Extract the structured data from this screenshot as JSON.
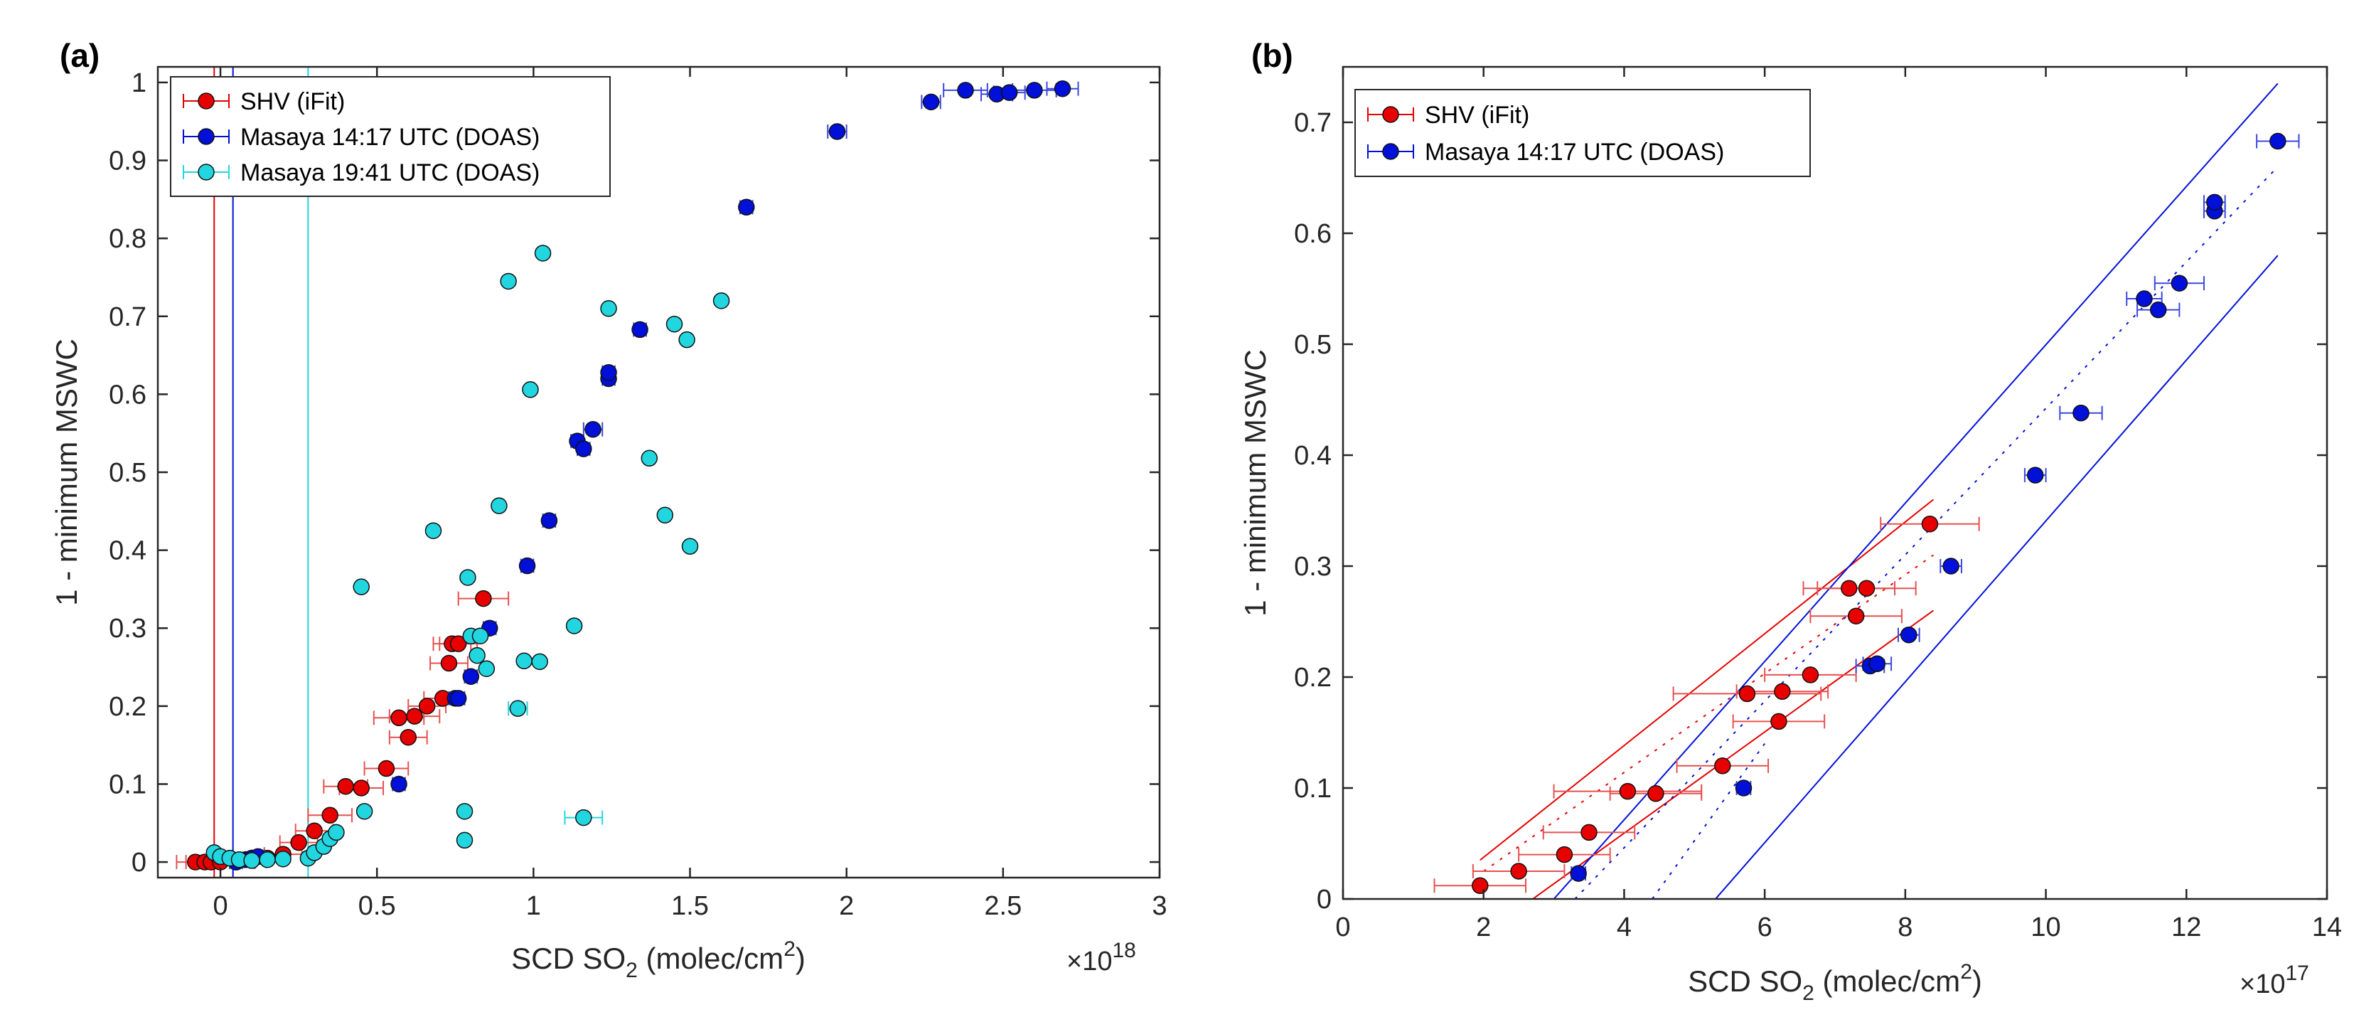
{
  "colors": {
    "shv": "#e60000",
    "shv_err": "#e65050",
    "masaya1417": "#0010d8",
    "masaya1417_err": "#3b47e0",
    "masaya1941": "#22d6e0",
    "masaya1941_err": "#22d6e0",
    "axis": "#262626"
  },
  "chart_data": [
    {
      "type": "scatter",
      "panel_label": "(a)",
      "xlabel": "SCD SO",
      "xlabel_sub": "2",
      "xlabel_suffix": " (molec/cm",
      "xlabel_sup": "2",
      "xlabel_end": ")",
      "ylabel": "1 - minimum MSWC",
      "x_exponent_base": "×10",
      "x_exponent_power": "18",
      "xlim": [
        -0.2,
        3.0
      ],
      "ylim": [
        -0.02,
        1.02
      ],
      "x_ticks": [
        0,
        0.5,
        1,
        1.5,
        2,
        2.5,
        3
      ],
      "x_tick_labels": [
        "0",
        "0.5",
        "1",
        "1.5",
        "2",
        "2.5",
        "3"
      ],
      "y_ticks": [
        0,
        0.1,
        0.2,
        0.3,
        0.4,
        0.5,
        0.6,
        0.7,
        0.8,
        0.9,
        1
      ],
      "y_tick_labels": [
        "0",
        "0.1",
        "0.2",
        "0.3",
        "0.4",
        "0.5",
        "0.6",
        "0.7",
        "0.8",
        "0.9",
        "1"
      ],
      "legend_position": "top-left",
      "vertical_lines": [
        {
          "x": -0.02,
          "series": "SHV (iFit)"
        },
        {
          "x": 0.04,
          "series": "Masaya 14:17 UTC (DOAS)"
        },
        {
          "x": 0.28,
          "series": "Masaya 19:41 UTC (DOAS)"
        }
      ],
      "series": [
        {
          "name": "SHV (iFit)",
          "color_key": "shv",
          "x": [
            -0.08,
            -0.05,
            -0.03,
            0.0,
            0.05,
            0.1,
            0.15,
            0.2,
            0.25,
            0.3,
            0.35,
            0.4,
            0.45,
            0.53,
            0.57,
            0.6,
            0.62,
            0.66,
            0.71,
            0.73,
            0.74,
            0.76,
            0.84
          ],
          "y": [
            0.0,
            0.0,
            0.0,
            0.0,
            0.0,
            0.005,
            0.005,
            0.01,
            0.025,
            0.04,
            0.06,
            0.097,
            0.095,
            0.12,
            0.185,
            0.16,
            0.187,
            0.2,
            0.21,
            0.255,
            0.28,
            0.28,
            0.338
          ],
          "xerr": [
            0.06,
            0.06,
            0.06,
            0.06,
            0.06,
            0.06,
            0.06,
            0.06,
            0.06,
            0.06,
            0.07,
            0.07,
            0.07,
            0.07,
            0.08,
            0.06,
            0.08,
            0.06,
            0.06,
            0.06,
            0.06,
            0.06,
            0.08
          ]
        },
        {
          "name": "Masaya 14:17 UTC (DOAS)",
          "color_key": "masaya1417",
          "x": [
            0.05,
            0.08,
            0.1,
            0.12,
            0.57,
            0.75,
            0.76,
            0.8,
            0.86,
            0.98,
            1.05,
            1.14,
            1.16,
            1.19,
            1.24,
            1.24,
            1.34,
            1.68,
            1.97,
            2.27,
            2.38,
            2.48,
            2.52,
            2.6,
            2.69
          ],
          "y": [
            0.0,
            0.003,
            0.005,
            0.007,
            0.1,
            0.21,
            0.21,
            0.238,
            0.3,
            0.38,
            0.438,
            0.54,
            0.53,
            0.555,
            0.62,
            0.628,
            0.683,
            0.84,
            0.937,
            0.975,
            0.99,
            0.985,
            0.987,
            0.99,
            0.992
          ],
          "xerr": [
            0.02,
            0.02,
            0.02,
            0.02,
            0.02,
            0.02,
            0.02,
            0.02,
            0.02,
            0.02,
            0.02,
            0.02,
            0.02,
            0.03,
            0.02,
            0.02,
            0.02,
            0.02,
            0.03,
            0.03,
            0.07,
            0.05,
            0.05,
            0.07,
            0.05
          ]
        },
        {
          "name": "Masaya 19:41 UTC (DOAS)",
          "color_key": "masaya1941",
          "x": [
            -0.02,
            0.0,
            0.03,
            0.06,
            0.1,
            0.15,
            0.2,
            0.28,
            0.3,
            0.33,
            0.35,
            0.37,
            0.45,
            0.46,
            0.68,
            0.78,
            0.78,
            0.79,
            0.8,
            0.82,
            0.83,
            0.85,
            0.89,
            0.92,
            0.95,
            0.97,
            0.99,
            1.02,
            1.03,
            1.13,
            1.16,
            1.24,
            1.37,
            1.42,
            1.45,
            1.49,
            1.5,
            1.6
          ],
          "y": [
            0.012,
            0.007,
            0.005,
            0.003,
            0.002,
            0.003,
            0.004,
            0.005,
            0.012,
            0.02,
            0.03,
            0.038,
            0.353,
            0.065,
            0.425,
            0.028,
            0.065,
            0.365,
            0.29,
            0.265,
            0.29,
            0.248,
            0.457,
            0.745,
            0.197,
            0.258,
            0.606,
            0.257,
            0.781,
            0.303,
            0.057,
            0.71,
            0.518,
            0.445,
            0.69,
            0.67,
            0.405,
            0.72
          ],
          "xerr": [
            0,
            0,
            0,
            0,
            0,
            0,
            0,
            0,
            0,
            0,
            0,
            0,
            0,
            0,
            0,
            0,
            0,
            0,
            0,
            0,
            0,
            0,
            0,
            0,
            0.03,
            0,
            0,
            0,
            0,
            0,
            0.06,
            0,
            0,
            0,
            0,
            0,
            0,
            0
          ]
        }
      ]
    },
    {
      "type": "scatter",
      "panel_label": "(b)",
      "xlabel": "SCD SO",
      "xlabel_sub": "2",
      "xlabel_suffix": " (molec/cm",
      "xlabel_sup": "2",
      "xlabel_end": ")",
      "ylabel": "1 - minimum MSWC",
      "x_exponent_base": "×10",
      "x_exponent_power": "17",
      "xlim": [
        0,
        14
      ],
      "ylim": [
        0,
        0.75
      ],
      "x_ticks": [
        0,
        2,
        4,
        6,
        8,
        10,
        12,
        14
      ],
      "x_tick_labels": [
        "0",
        "2",
        "4",
        "6",
        "8",
        "10",
        "12",
        "14"
      ],
      "y_ticks": [
        0,
        0.1,
        0.2,
        0.3,
        0.4,
        0.5,
        0.6,
        0.7
      ],
      "y_tick_labels": [
        "0",
        "0.1",
        "0.2",
        "0.3",
        "0.4",
        "0.5",
        "0.6",
        "0.7"
      ],
      "legend_position": "top-left",
      "fit_lines": [
        {
          "series": "SHV (iFit)",
          "style": "dotted",
          "x": [
            2.0,
            8.4
          ],
          "y": [
            0.025,
            0.31
          ]
        },
        {
          "series": "SHV (iFit)",
          "style": "solid",
          "x": [
            2.7,
            8.4
          ],
          "y": [
            0.0,
            0.26
          ]
        },
        {
          "series": "SHV (iFit)",
          "style": "solid",
          "x": [
            1.95,
            8.4
          ],
          "y": [
            0.035,
            0.36
          ]
        },
        {
          "series": "Masaya 14:17 UTC (DOAS)",
          "style": "dotted",
          "x": [
            3.3,
            13.3
          ],
          "y": [
            0.0,
            0.66
          ]
        },
        {
          "series": "Masaya 14:17 UTC (DOAS)",
          "style": "dotted",
          "x": [
            4.4,
            6.0
          ],
          "y": [
            0.0,
            0.14
          ]
        },
        {
          "series": "Masaya 14:17 UTC (DOAS)",
          "style": "solid",
          "x": [
            3.0,
            13.3
          ],
          "y": [
            0.0,
            0.735
          ]
        },
        {
          "series": "Masaya 14:17 UTC (DOAS)",
          "style": "solid",
          "x": [
            5.3,
            13.3
          ],
          "y": [
            0.0,
            0.58
          ]
        }
      ],
      "series": [
        {
          "name": "SHV (iFit)",
          "color_key": "shv",
          "x": [
            1.95,
            2.5,
            3.15,
            3.5,
            4.05,
            4.45,
            5.4,
            5.75,
            6.2,
            6.25,
            6.65,
            7.2,
            7.3,
            7.45,
            8.35
          ],
          "y": [
            0.012,
            0.025,
            0.04,
            0.06,
            0.097,
            0.095,
            0.12,
            0.185,
            0.16,
            0.187,
            0.202,
            0.28,
            0.255,
            0.28,
            0.338
          ],
          "xerr": [
            0.65,
            0.65,
            0.65,
            0.65,
            1.05,
            0.65,
            0.65,
            1.05,
            0.65,
            0.65,
            0.65,
            0.65,
            0.65,
            0.7,
            0.7
          ]
        },
        {
          "name": "Masaya 14:17 UTC (DOAS)",
          "color_key": "masaya1417",
          "x": [
            3.35,
            5.7,
            7.5,
            7.6,
            8.05,
            8.65,
            9.85,
            10.5,
            11.4,
            11.6,
            11.9,
            12.4,
            12.4,
            13.3
          ],
          "y": [
            0.023,
            0.1,
            0.21,
            0.212,
            0.238,
            0.3,
            0.382,
            0.438,
            0.541,
            0.531,
            0.555,
            0.62,
            0.628,
            0.683
          ],
          "xerr": [
            0.1,
            0.1,
            0.2,
            0.2,
            0.15,
            0.15,
            0.15,
            0.3,
            0.25,
            0.3,
            0.35,
            0.15,
            0.15,
            0.3
          ]
        }
      ]
    }
  ]
}
